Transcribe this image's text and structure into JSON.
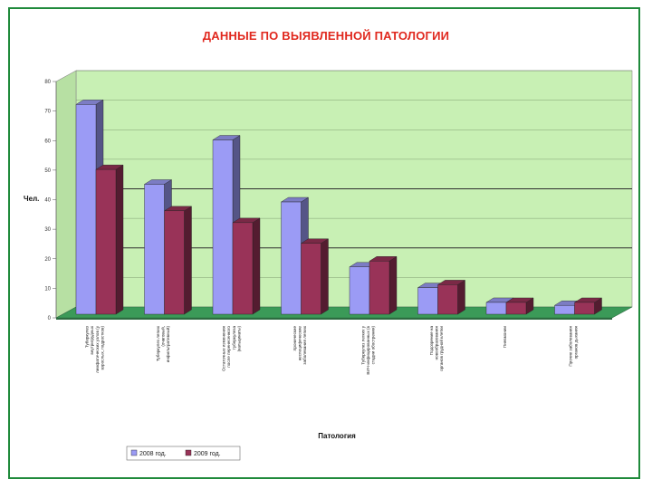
{
  "title": "ДАННЫЕ ПО ВЫЯВЛЕННОЙ ПАТОЛОГИИ",
  "chart_data": {
    "type": "bar",
    "title": "ДАННЫЕ ПО ВЫЯВЛЕННОЙ ПАТОЛОГИИ",
    "xlabel": "Патология",
    "ylabel": "Чел.",
    "ylim": [
      0,
      80
    ],
    "yticks": [
      0,
      10,
      20,
      30,
      40,
      50,
      60,
      70,
      80
    ],
    "ytick_labels": [
      "0",
      "10",
      "20",
      "30",
      "40",
      "50",
      "60",
      "70",
      "80"
    ],
    "grid": true,
    "legend_position": "bottom",
    "categories": [
      "Туберкулез внутригрудных лимфатических узлов (у взрослых, подростков)",
      "Туберкулез легких (очаговый, инфильтративный)",
      "Остаточные изменения после перенесенного туберкулеза (кальцинаты)",
      "Хронические неспецифические заболевания легких",
      "Туберкулез легких у ВИЧ-инфицированных (в стадии обострения)",
      "Подозрение на новообразования органов грудной клетки",
      "Пневмонии",
      "Прочие заболевания органов дыхания"
    ],
    "series": [
      {
        "name": "2008 год.",
        "color": "#9b9bf5",
        "values": [
          71,
          44,
          59,
          38,
          16,
          9,
          4,
          3
        ]
      },
      {
        "name": "2009 год.",
        "color": "#993358",
        "values": [
          49,
          35,
          31,
          24,
          18,
          10,
          4,
          4
        ]
      }
    ],
    "colors": {
      "plot_background": "#c8f0b4",
      "floor": "#3b9a58",
      "gridline": "#2f2f2f"
    }
  }
}
